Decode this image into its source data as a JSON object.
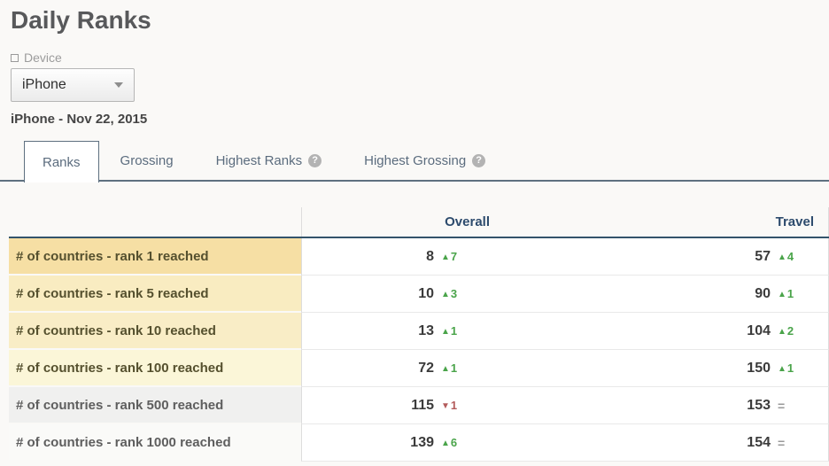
{
  "page": {
    "title": "Daily Ranks",
    "subtitle": "iPhone - Nov 22, 2015"
  },
  "device_filter": {
    "label": "Device",
    "selected_value": "iPhone"
  },
  "tabs": [
    {
      "label": "Ranks",
      "active": true,
      "help": false
    },
    {
      "label": "Grossing",
      "active": false,
      "help": false
    },
    {
      "label": "Highest Ranks",
      "active": false,
      "help": true
    },
    {
      "label": "Highest Grossing",
      "active": false,
      "help": true
    }
  ],
  "icons": {
    "help": "?",
    "up": "▲",
    "down": "▼",
    "same": "="
  },
  "table": {
    "column_headers": {
      "overall": "Overall",
      "travel": "Travel"
    },
    "rows": [
      {
        "label": "# of countries - rank 1 reached",
        "overall": {
          "value": "8",
          "change": "7",
          "direction": "up"
        },
        "travel": {
          "value": "57",
          "change": "4",
          "direction": "up"
        },
        "label_bg": "#f6dfa4",
        "label_color": "#55502e"
      },
      {
        "label": "# of countries - rank 5 reached",
        "overall": {
          "value": "10",
          "change": "3",
          "direction": "up"
        },
        "travel": {
          "value": "90",
          "change": "1",
          "direction": "up"
        },
        "label_bg": "#f9ecc1",
        "label_color": "#55502e"
      },
      {
        "label": "# of countries - rank 10 reached",
        "overall": {
          "value": "13",
          "change": "1",
          "direction": "up"
        },
        "travel": {
          "value": "104",
          "change": "2",
          "direction": "up"
        },
        "label_bg": "#f9edc6",
        "label_color": "#55502e"
      },
      {
        "label": "# of countries - rank 100 reached",
        "overall": {
          "value": "72",
          "change": "1",
          "direction": "up"
        },
        "travel": {
          "value": "150",
          "change": "1",
          "direction": "up"
        },
        "label_bg": "#fbf6d8",
        "label_color": "#55502e"
      },
      {
        "label": "# of countries - rank 500 reached",
        "overall": {
          "value": "115",
          "change": "1",
          "direction": "down"
        },
        "travel": {
          "value": "153",
          "change": "",
          "direction": "same"
        },
        "label_bg": "#f0f0ef",
        "label_color": "#5e5e5e"
      },
      {
        "label": "# of countries - rank 1000 reached",
        "overall": {
          "value": "139",
          "change": "6",
          "direction": "up"
        },
        "travel": {
          "value": "154",
          "change": "",
          "direction": "same"
        },
        "label_bg": "#fafaf8",
        "label_color": "#5e5e5e"
      }
    ]
  },
  "colors": {
    "header_text": "#2d4b6d",
    "header_border": "#33536b",
    "up": "#4aa44a",
    "down": "#b35b5b",
    "same": "#999999",
    "tab_text": "#5b6c7e",
    "tab_border": "#5e7080"
  }
}
